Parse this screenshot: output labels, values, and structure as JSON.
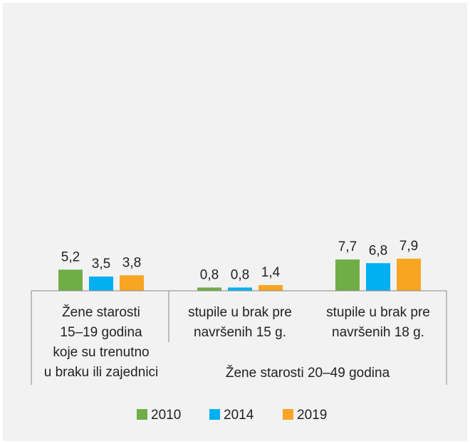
{
  "chart_data": {
    "type": "bar",
    "categories": [
      [
        "Žene starosti",
        "15–19 godina",
        "koje su trenutno",
        "u braku ili zajednici"
      ],
      [
        "stupile u brak pre",
        "navršenih 15 g."
      ],
      [
        "stupile u brak pre",
        "navršenih 18 g."
      ]
    ],
    "category_group": "Žene starosti 20–49 godina",
    "series": [
      {
        "name": "2010",
        "color": "#70ad47",
        "values": [
          5.2,
          0.8,
          7.7
        ],
        "value_labels": [
          "5,2",
          "0,8",
          "7,7"
        ]
      },
      {
        "name": "2014",
        "color": "#00b0f0",
        "values": [
          3.5,
          0.8,
          6.8
        ],
        "value_labels": [
          "3,5",
          "0,8",
          "6,8"
        ]
      },
      {
        "name": "2019",
        "color": "#f8a523",
        "values": [
          3.8,
          1.4,
          7.9
        ],
        "value_labels": [
          "3,8",
          "1,4",
          "7,9"
        ]
      }
    ],
    "ylim": [
      0,
      70
    ]
  }
}
